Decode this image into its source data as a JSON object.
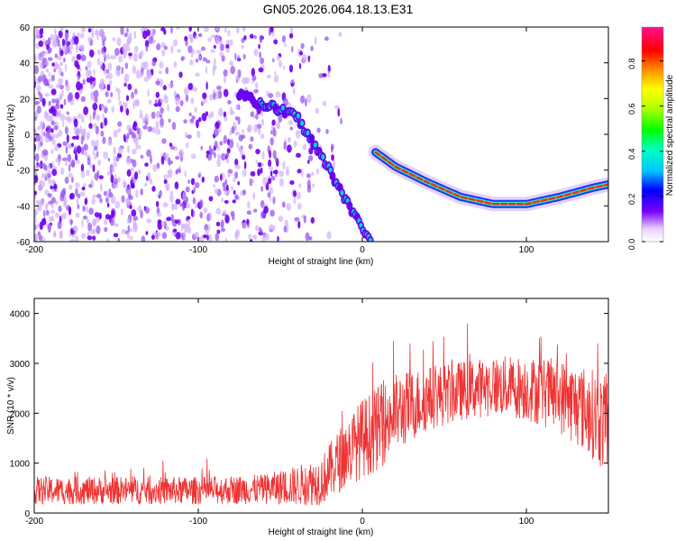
{
  "title": "GN05.2026.064.18.13.E31",
  "chart_data": [
    {
      "type": "heatmap",
      "name": "spectrogram",
      "xlabel": "Height of straight line (km)",
      "ylabel": "Frequency (Hz)",
      "xlim": [
        -200,
        150
      ],
      "ylim": [
        -60,
        60
      ],
      "xticks": [
        -200,
        -100,
        0,
        100
      ],
      "yticks": [
        -60,
        -40,
        -20,
        0,
        20,
        40,
        60
      ],
      "colorbar": {
        "label": "Normalized spectral amplitude",
        "range": [
          0,
          0.95
        ],
        "ticks": [
          "0.0",
          "0.2",
          "0.4",
          "0.6",
          "0.8"
        ]
      },
      "features": {
        "noise_region_x": [
          -200,
          -30
        ],
        "descending_trace": {
          "x": [
            -75,
            -40,
            -20,
            -5,
            5
          ],
          "y": [
            22,
            10,
            -20,
            -45,
            -60
          ]
        },
        "recovery_curve": {
          "x": [
            8,
            20,
            40,
            60,
            80,
            100,
            120,
            140,
            150
          ],
          "y": [
            -10,
            -18,
            -27,
            -35,
            -39,
            -39,
            -35,
            -30,
            -28
          ]
        }
      }
    },
    {
      "type": "line",
      "name": "snr",
      "xlabel": "Height of straight line (km)",
      "ylabel": "SNR (10 * v/v)",
      "xlim": [
        -200,
        150
      ],
      "ylim": [
        0,
        4300
      ],
      "xticks": [
        -200,
        -100,
        0,
        100
      ],
      "yticks": [
        0,
        1000,
        2000,
        3000,
        4000
      ],
      "color": "#ee3333",
      "envelope": {
        "x": [
          -200,
          -150,
          -100,
          -60,
          -40,
          -25,
          -10,
          0,
          10,
          20,
          40,
          60,
          80,
          100,
          120,
          140,
          150
        ],
        "center": [
          450,
          450,
          450,
          480,
          550,
          650,
          1200,
          1500,
          1700,
          2000,
          2300,
          2450,
          2550,
          2500,
          2350,
          2000,
          1700
        ],
        "spread": [
          280,
          280,
          280,
          300,
          400,
          500,
          700,
          800,
          850,
          800,
          650,
          600,
          600,
          650,
          750,
          900,
          1000
        ]
      }
    }
  ]
}
